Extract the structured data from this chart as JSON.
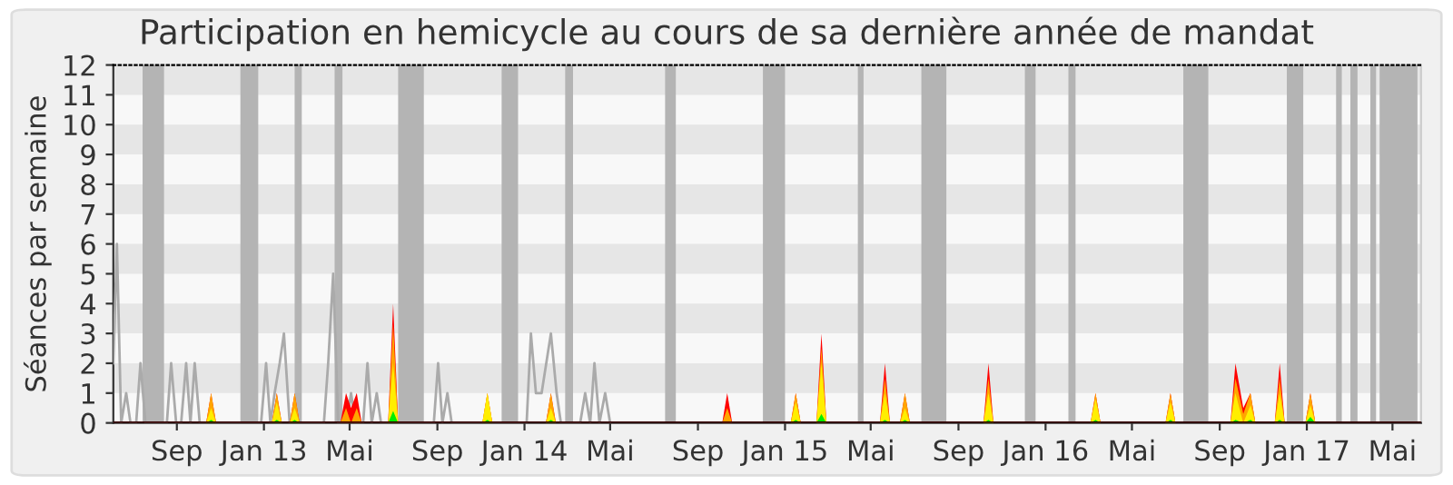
{
  "chart_data": {
    "type": "area",
    "title": "Participation en hemicycle au cours de sa dernière année de mandat",
    "ylabel": "Séances par semaine",
    "xlim": [
      "2012-06-04",
      "2017-06-10"
    ],
    "ylim": [
      0,
      12
    ],
    "xticks": [
      {
        "value": "2012-09-01",
        "label": "Sep"
      },
      {
        "value": "2013-01-01",
        "label": "Jan 13"
      },
      {
        "value": "2013-05-01",
        "label": "Mai"
      },
      {
        "value": "2013-09-01",
        "label": "Sep"
      },
      {
        "value": "2014-01-01",
        "label": "Jan 14"
      },
      {
        "value": "2014-05-01",
        "label": "Mai"
      },
      {
        "value": "2014-09-01",
        "label": "Sep"
      },
      {
        "value": "2015-01-01",
        "label": "Jan 15"
      },
      {
        "value": "2015-05-01",
        "label": "Mai"
      },
      {
        "value": "2015-09-01",
        "label": "Sep"
      },
      {
        "value": "2016-01-01",
        "label": "Jan 16"
      },
      {
        "value": "2016-05-01",
        "label": "Mai"
      },
      {
        "value": "2016-09-01",
        "label": "Sep"
      },
      {
        "value": "2017-01-01",
        "label": "Jan 17"
      },
      {
        "value": "2017-05-01",
        "label": "Mai"
      }
    ],
    "yticks": [
      0,
      1,
      2,
      3,
      4,
      5,
      6,
      7,
      8,
      9,
      10,
      11,
      12
    ],
    "grid": false,
    "x": [
      "2012-06-04",
      "2012-10-12",
      "2012-10-19",
      "2012-10-26",
      "2013-01-12",
      "2013-01-19",
      "2013-01-26",
      "2013-02-06",
      "2013-02-13",
      "2013-02-20",
      "2013-04-18",
      "2013-04-26",
      "2013-05-03",
      "2013-05-11",
      "2013-05-18",
      "2013-06-24",
      "2013-07-01",
      "2013-07-08",
      "2013-11-03",
      "2013-11-10",
      "2013-11-17",
      "2014-01-31",
      "2014-02-07",
      "2014-02-14",
      "2014-10-05",
      "2014-10-12",
      "2014-10-19",
      "2015-01-09",
      "2015-01-16",
      "2015-01-23",
      "2015-02-14",
      "2015-02-21",
      "2015-02-28",
      "2015-05-14",
      "2015-05-21",
      "2015-05-28",
      "2015-06-11",
      "2015-06-18",
      "2015-06-25",
      "2015-10-06",
      "2015-10-13",
      "2015-10-20",
      "2016-03-04",
      "2016-03-11",
      "2016-03-18",
      "2016-06-17",
      "2016-06-24",
      "2016-07-01",
      "2016-09-16",
      "2016-09-23",
      "2016-10-04",
      "2016-10-14",
      "2016-10-21",
      "2016-11-17",
      "2016-11-24",
      "2016-12-01",
      "2016-12-30",
      "2017-01-06",
      "2017-01-13",
      "2017-06-10"
    ],
    "series": [
      {
        "type": "line",
        "color": "#aaaaaa",
        "x": [
          "2012-06-04",
          "2012-06-09",
          "2012-06-15",
          "2012-06-22",
          "2012-06-28",
          "2012-07-06",
          "2012-07-12",
          "2012-07-19",
          "2012-08-18",
          "2012-08-24",
          "2012-08-31",
          "2012-09-07",
          "2012-09-14",
          "2012-09-20",
          "2012-09-26",
          "2012-10-03",
          "2012-12-28",
          "2013-01-04",
          "2013-01-10",
          "2013-01-16",
          "2013-01-23",
          "2013-01-29",
          "2013-02-06",
          "2013-03-26",
          "2013-04-01",
          "2013-04-08",
          "2013-04-15",
          "2013-04-27",
          "2013-05-03",
          "2013-05-09",
          "2013-05-20",
          "2013-05-26",
          "2013-06-01",
          "2013-06-08",
          "2013-06-14",
          "2013-08-27",
          "2013-09-02",
          "2013-09-08",
          "2013-09-15",
          "2013-09-21",
          "2014-01-04",
          "2014-01-10",
          "2014-01-17",
          "2014-01-25",
          "2014-02-07",
          "2014-02-15",
          "2014-02-21",
          "2014-03-20",
          "2014-03-27",
          "2014-04-03",
          "2014-04-09",
          "2014-04-16",
          "2014-04-24",
          "2014-05-01"
        ],
        "values": [
          2,
          6,
          0,
          1,
          0,
          0,
          2,
          0,
          0,
          2,
          0,
          0,
          2,
          0,
          2,
          0,
          0,
          2,
          0,
          1,
          2,
          3,
          0,
          0,
          2,
          5,
          0,
          0,
          1,
          0,
          0,
          2,
          0,
          1,
          0,
          0,
          2,
          0,
          1,
          0,
          0,
          3,
          1,
          1,
          3,
          1,
          0,
          0,
          1,
          0,
          2,
          0,
          1,
          0
        ]
      },
      {
        "color": "#ff0000",
        "values": [
          0,
          0,
          1,
          0,
          0,
          1,
          0,
          0,
          1,
          0,
          0,
          1,
          0.5,
          1,
          0,
          0,
          4,
          0,
          0,
          1,
          0,
          0,
          1,
          0,
          0,
          1,
          0,
          0,
          1,
          0,
          0,
          3,
          0,
          0,
          2,
          0,
          0,
          1,
          0,
          0,
          2,
          0,
          0,
          1,
          0,
          0,
          1,
          0,
          0,
          2,
          0.5,
          1,
          0,
          0,
          2,
          0,
          0,
          1,
          0,
          0
        ]
      },
      {
        "color": "#ffa500",
        "values": [
          0,
          0,
          1,
          0,
          0,
          1,
          0,
          0,
          1,
          0,
          0,
          0.5,
          0,
          0.5,
          0,
          0,
          3.3,
          0,
          0,
          1,
          0,
          0,
          1,
          0,
          0,
          0.5,
          0,
          0,
          1,
          0,
          0,
          2.5,
          0,
          0,
          1.5,
          0,
          0,
          1,
          0,
          0,
          1.5,
          0,
          0,
          1,
          0,
          0,
          1,
          0,
          0,
          1.5,
          0.3,
          1,
          0,
          0,
          1.5,
          0,
          0,
          1,
          0,
          0
        ]
      },
      {
        "color": "#ffee00",
        "values": [
          0,
          0,
          0.5,
          0,
          0,
          0.7,
          0,
          0,
          0.5,
          0,
          0,
          0,
          0,
          0,
          0,
          0,
          2,
          0,
          0,
          1,
          0,
          0,
          0.5,
          0,
          0,
          0,
          0,
          0,
          0.7,
          0,
          0,
          2,
          0,
          0,
          1,
          0,
          0,
          0.5,
          0,
          0,
          1,
          0,
          0,
          0.8,
          0,
          0,
          0.7,
          0,
          0,
          1,
          0,
          0.6,
          0,
          0,
          1,
          0,
          0,
          0.6,
          0,
          0
        ]
      },
      {
        "color": "#00ee00",
        "values": [
          0,
          0,
          0.1,
          0,
          0,
          0.1,
          0,
          0,
          0.1,
          0,
          0,
          0,
          0,
          0,
          0,
          0,
          0.4,
          0,
          0,
          0.1,
          0,
          0,
          0.1,
          0,
          0,
          0,
          0,
          0,
          0.1,
          0,
          0,
          0.3,
          0,
          0,
          0.1,
          0,
          0,
          0.1,
          0,
          0,
          0.1,
          0,
          0,
          0.1,
          0,
          0,
          0.1,
          0,
          0,
          0.1,
          0,
          0.1,
          0,
          0,
          0.1,
          0,
          0,
          0.2,
          0,
          0
        ]
      }
    ],
    "bands": [
      {
        "axis": "y",
        "from": 1,
        "to": 2,
        "color": "#e6e6e6"
      },
      {
        "axis": "y",
        "from": 3,
        "to": 4,
        "color": "#e6e6e6"
      },
      {
        "axis": "y",
        "from": 5,
        "to": 6,
        "color": "#e6e6e6"
      },
      {
        "axis": "y",
        "from": 7,
        "to": 8,
        "color": "#e6e6e6"
      },
      {
        "axis": "y",
        "from": 9,
        "to": 10,
        "color": "#e6e6e6"
      },
      {
        "axis": "y",
        "from": 11,
        "to": 12,
        "color": "#e6e6e6"
      },
      {
        "axis": "x",
        "from": "2012-07-15",
        "to": "2012-08-14",
        "color": "#b4b4b4"
      },
      {
        "axis": "x",
        "from": "2012-11-29",
        "to": "2012-12-24",
        "color": "#b4b4b4"
      },
      {
        "axis": "x",
        "from": "2013-02-13",
        "to": "2013-02-23",
        "color": "#b4b4b4"
      },
      {
        "axis": "x",
        "from": "2013-04-10",
        "to": "2013-04-21",
        "color": "#b4b4b4"
      },
      {
        "axis": "x",
        "from": "2013-07-08",
        "to": "2013-08-13",
        "color": "#b4b4b4"
      },
      {
        "axis": "x",
        "from": "2013-11-30",
        "to": "2013-12-23",
        "color": "#b4b4b4"
      },
      {
        "axis": "x",
        "from": "2014-02-27",
        "to": "2014-03-10",
        "color": "#b4b4b4"
      },
      {
        "axis": "x",
        "from": "2014-07-17",
        "to": "2014-08-01",
        "color": "#b4b4b4"
      },
      {
        "axis": "x",
        "from": "2014-12-01",
        "to": "2015-01-01",
        "color": "#b4b4b4"
      },
      {
        "axis": "x",
        "from": "2015-04-13",
        "to": "2015-04-21",
        "color": "#b4b4b4"
      },
      {
        "axis": "x",
        "from": "2015-07-11",
        "to": "2015-08-15",
        "color": "#b4b4b4"
      },
      {
        "axis": "x",
        "from": "2015-12-03",
        "to": "2015-12-18",
        "color": "#b4b4b4"
      },
      {
        "axis": "x",
        "from": "2016-02-02",
        "to": "2016-02-12",
        "color": "#b4b4b4"
      },
      {
        "axis": "x",
        "from": "2016-07-12",
        "to": "2016-08-16",
        "color": "#b4b4b4"
      },
      {
        "axis": "x",
        "from": "2016-12-04",
        "to": "2016-12-27",
        "color": "#b4b4b4"
      },
      {
        "axis": "x",
        "from": "2017-02-11",
        "to": "2017-02-19",
        "color": "#b4b4b4"
      },
      {
        "axis": "x",
        "from": "2017-03-03",
        "to": "2017-03-13",
        "color": "#b4b4b4"
      },
      {
        "axis": "x",
        "from": "2017-03-31",
        "to": "2017-04-08",
        "color": "#b4b4b4"
      },
      {
        "axis": "x",
        "from": "2017-04-13",
        "to": "2017-06-05",
        "color": "#b4b4b4"
      }
    ]
  }
}
